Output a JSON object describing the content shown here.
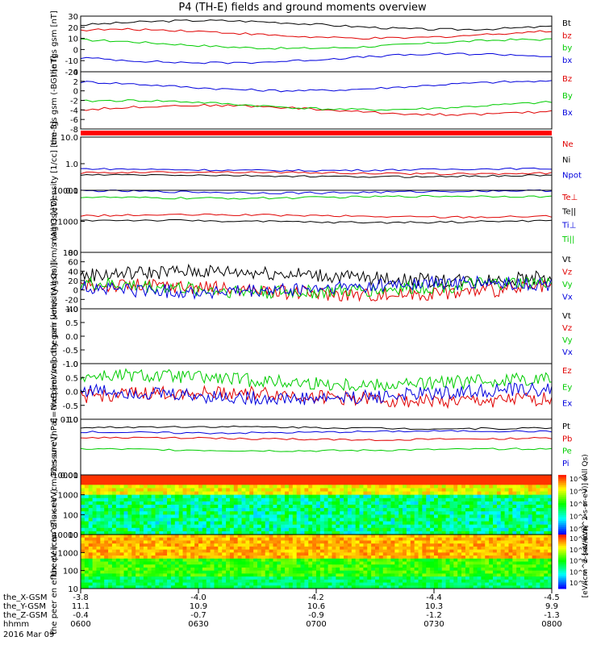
{
  "title": "P4 (TH-E) fields and ground moments overview",
  "colors": {
    "black": "#000000",
    "red": "#e00000",
    "green": "#00cc00",
    "blue": "#0000dd",
    "frame": "#000000"
  },
  "chart_data": [
    {
      "type": "line",
      "ylabel": "the fgs gsm [nT]",
      "ylim": [
        -20,
        30
      ],
      "ticks": [
        "30",
        "20",
        "10",
        "0",
        "-10",
        "-20"
      ],
      "series": [
        {
          "name": "Bt",
          "color": "black",
          "base": 22
        },
        {
          "name": "bz",
          "color": "red",
          "base": 14
        },
        {
          "name": "by",
          "color": "green",
          "base": 5
        },
        {
          "name": "bx",
          "color": "blue",
          "base": -8
        }
      ]
    },
    {
      "type": "line",
      "ylabel": "the fgs gsm (-BG) [nT]",
      "ylim": [
        -8,
        4
      ],
      "ticks": [
        "4",
        "2",
        "0",
        "-2",
        "-4",
        "-6",
        "-8"
      ],
      "series": [
        {
          "name": "Bz",
          "color": "red",
          "base": -4
        },
        {
          "name": "By",
          "color": "green",
          "base": -3
        },
        {
          "name": "Bx",
          "color": "blue",
          "base": 1
        }
      ]
    },
    {
      "type": "bar",
      "label": "",
      "ylim": [
        0,
        1
      ],
      "ticks": [],
      "series": []
    },
    {
      "type": "line",
      "ylabel": "Density [1/cc] [cm-3]",
      "ylim": [
        0.1,
        10
      ],
      "ticks": [
        "10.0",
        "1.0",
        "0.1"
      ],
      "series": [
        {
          "name": "Ne",
          "color": "red",
          "base": 0.45
        },
        {
          "name": "Ni",
          "color": "black",
          "base": 0.35
        },
        {
          "name": "Npot",
          "color": "blue",
          "base": 0.6
        }
      ]
    },
    {
      "type": "line",
      "ylabel": "magt3 [eV]",
      "ylim": [
        100,
        10000
      ],
      "ticks": [
        "10000",
        "1000",
        "100"
      ],
      "series": [
        {
          "name": "Te⊥",
          "color": "red",
          "base": 1500
        },
        {
          "name": "Te||",
          "color": "black",
          "base": 1000
        },
        {
          "name": "Ti⊥",
          "color": "blue",
          "base": 9000
        },
        {
          "name": "Ti||",
          "color": "green",
          "base": 6000
        }
      ]
    },
    {
      "type": "line",
      "ylabel": "the peir velocity gsm [km/s (All Qs)]",
      "ylim": [
        -40,
        80
      ],
      "ticks": [
        "80",
        "60",
        "40",
        "20",
        "0",
        "-20",
        "-40"
      ],
      "series": [
        {
          "name": "Vt",
          "color": "black",
          "base": 30
        },
        {
          "name": "Vz",
          "color": "red",
          "base": 0
        },
        {
          "name": "Vy",
          "color": "green",
          "base": 5
        },
        {
          "name": "Vx",
          "color": "blue",
          "base": 5
        }
      ]
    },
    {
      "type": "line",
      "ylabel": "the peer velocity gsm [km/s (All Qs)]",
      "ylim": [
        -1,
        1
      ],
      "ticks": [
        "1.0",
        "0.5",
        "0.0",
        "-0.5",
        "-1.0"
      ],
      "series": [
        {
          "name": "Vt",
          "color": "black"
        },
        {
          "name": "Vz",
          "color": "red"
        },
        {
          "name": "Vy",
          "color": "green"
        },
        {
          "name": "Vx",
          "color": "blue"
        }
      ]
    },
    {
      "type": "line",
      "ylabel": "E=-VxB [mV/m]",
      "ylim": [
        -1,
        1
      ],
      "ticks": [
        "1.0",
        "0.5",
        "0.0",
        "-0.5",
        "-1.0"
      ],
      "series": [
        {
          "name": "Ez",
          "color": "red",
          "base": -0.2
        },
        {
          "name": "Ey",
          "color": "green",
          "base": 0.4
        },
        {
          "name": "Ex",
          "color": "blue",
          "base": -0.1
        }
      ]
    },
    {
      "type": "line",
      "ylabel": "Pressure [nPa]",
      "ylim": [
        0.01,
        1
      ],
      "ticks": [
        "0.10",
        "0.01"
      ],
      "series": [
        {
          "name": "Pt",
          "color": "black",
          "base": 0.5
        },
        {
          "name": "Pb",
          "color": "red",
          "base": 0.2
        },
        {
          "name": "Pe",
          "color": "green",
          "base": 0.08
        },
        {
          "name": "Pi",
          "color": "blue",
          "base": 0.35
        }
      ]
    },
    {
      "type": "heatmap",
      "ylabel": "the peir en eflux eV (cm^2-s-sr-eV)",
      "ylim": [
        5,
        20000
      ],
      "ticks": [
        "10000",
        "1000",
        "100",
        "10"
      ],
      "colorbar": "[eV/(cm^2-s-sr-eV)] (All Qs)"
    },
    {
      "type": "heatmap",
      "ylabel": "the peer en eflux eV (cm^2-s-sr-eV)",
      "ylim": [
        5,
        20000
      ],
      "ticks": [
        "10000",
        "1000",
        "100",
        "10"
      ],
      "colorbar": "[eV/(cm^2-s-sr-eV)]"
    }
  ],
  "axis": {
    "rows": [
      {
        "label": "the_X-GSM",
        "values": [
          "-3.8",
          "-4.0",
          "-4.2",
          "-4.4",
          "-4.5"
        ]
      },
      {
        "label": "the_Y-GSM",
        "values": [
          "11.1",
          "10.9",
          "10.6",
          "10.3",
          "9.9"
        ]
      },
      {
        "label": "the_Z-GSM",
        "values": [
          "-0.4",
          "-0.7",
          "-0.9",
          "-1.2",
          "-1.3"
        ]
      },
      {
        "label": "hhmm",
        "values": [
          "0600",
          "0630",
          "0700",
          "0730",
          "0800"
        ]
      }
    ],
    "date": "2016 Mar 09"
  },
  "colorbar_ticks": [
    "10^8",
    "10^7",
    "10^6",
    "10^5",
    "10^4"
  ]
}
